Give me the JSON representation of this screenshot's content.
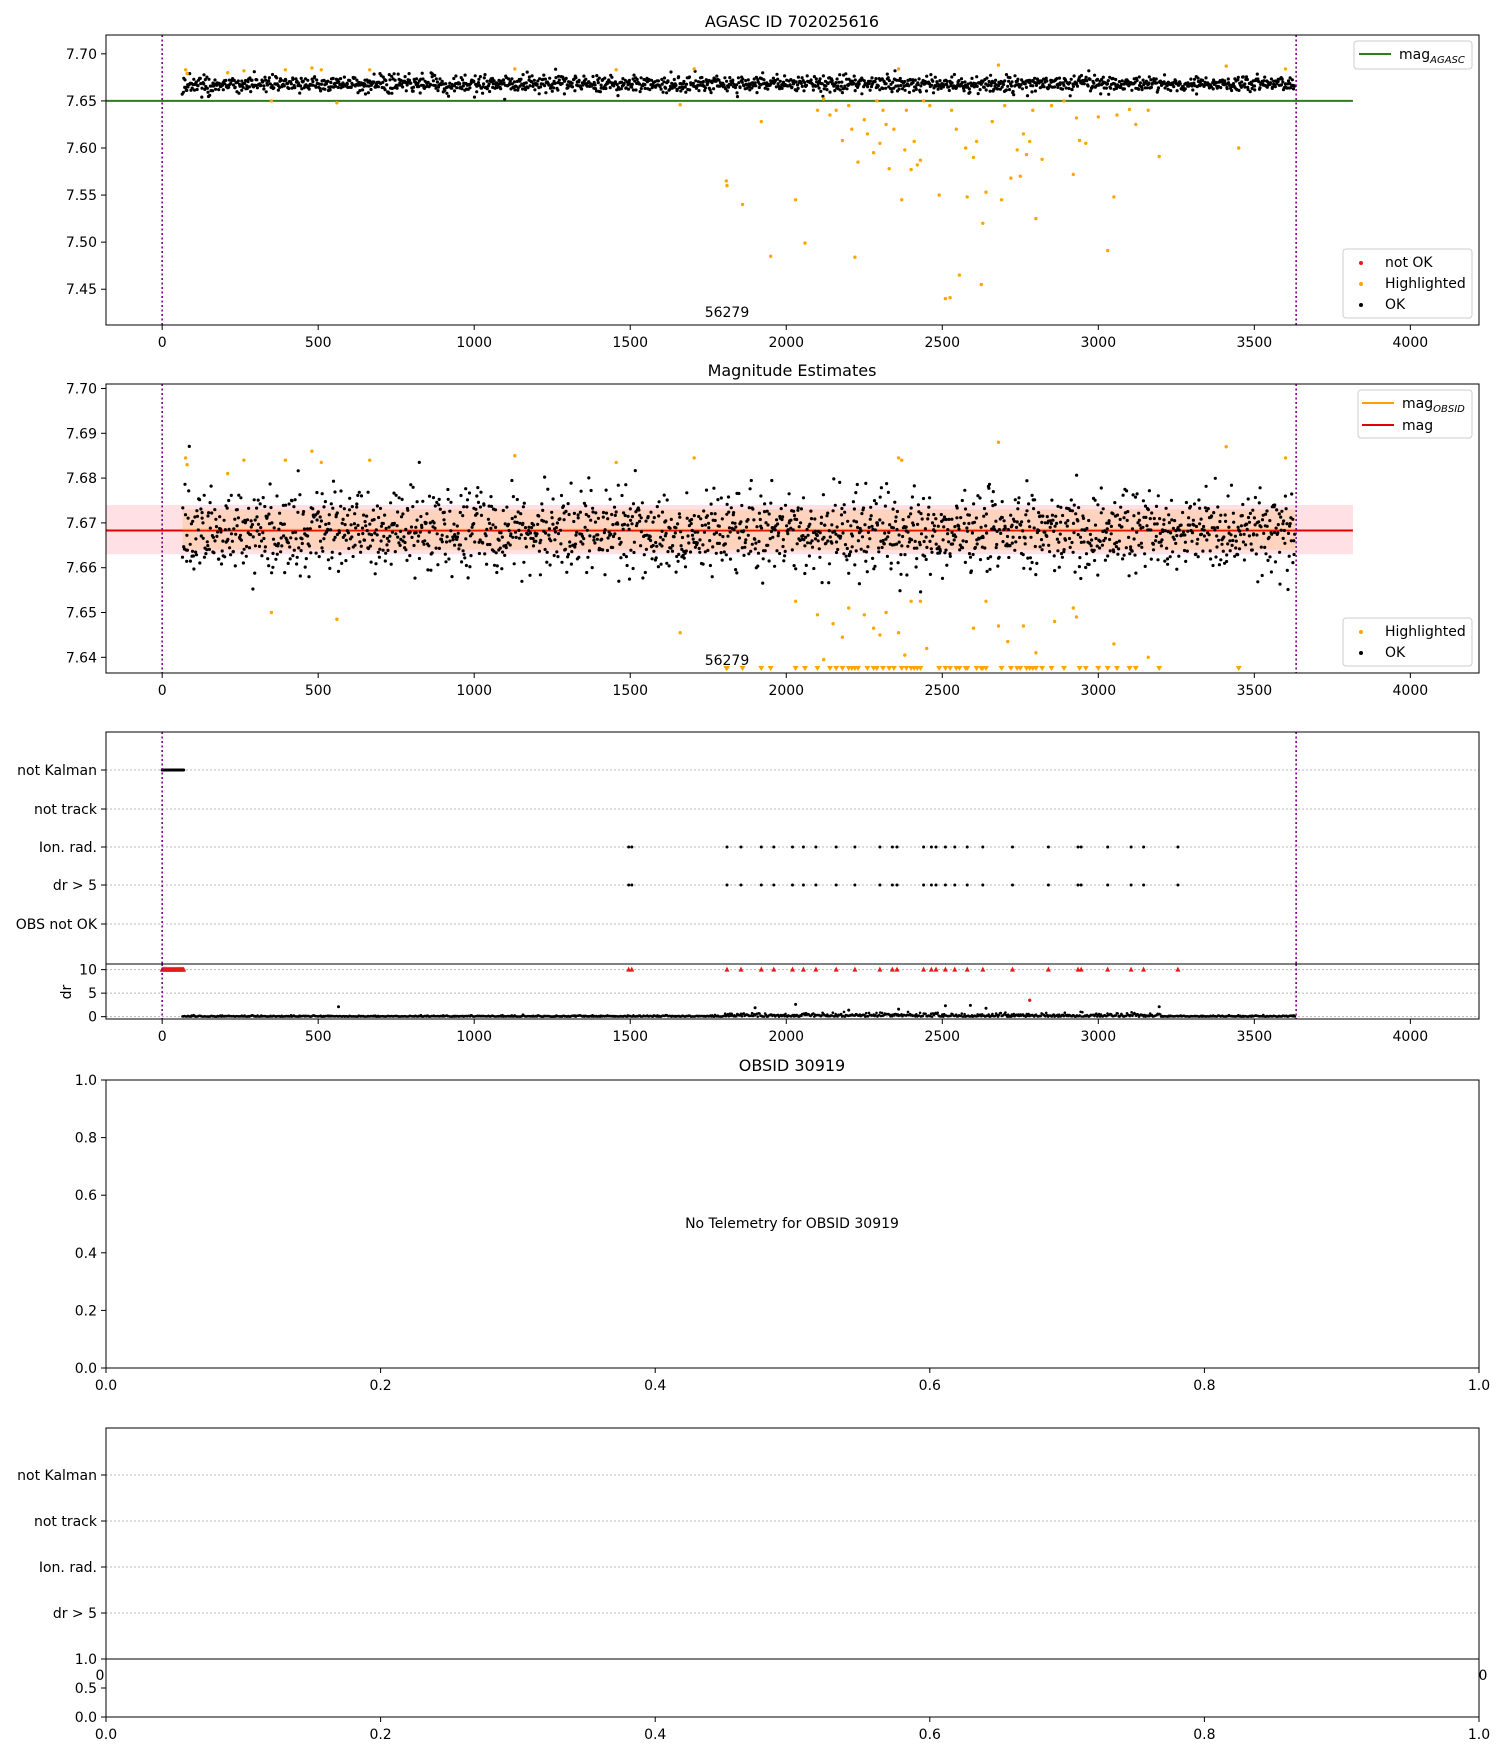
{
  "colors": {
    "ok": "#000000",
    "highlighted": "#ffa500",
    "not_ok": "#e41a1c",
    "agasc_line": "#2e7d1a",
    "mean_line": "#e00000",
    "obsid_line": "#ff9f00",
    "band_outer": "#ffd5dc",
    "band_inner": "#ffcfb4",
    "vline": "#7d008c",
    "grid": "#b8b8b8"
  },
  "chart_data": [
    {
      "id": "agasc",
      "type": "scatter",
      "title": "AGASC ID 702025616",
      "xlabel": "",
      "ylabel": "",
      "xlim": [
        -180,
        4220
      ],
      "ylim": [
        7.412,
        7.72
      ],
      "xticks": [
        0,
        500,
        1000,
        1500,
        2000,
        2500,
        3000,
        3500,
        4000
      ],
      "yticks": [
        7.45,
        7.5,
        7.55,
        7.6,
        7.65,
        7.7
      ],
      "ytick_labels": [
        "7.45",
        "7.50",
        "7.55",
        "7.60",
        "7.65",
        "7.70"
      ],
      "obs_boundaries": [
        0,
        3634
      ],
      "obs_label": "56279",
      "obs_label_x": 1810,
      "hlines": [
        {
          "name": "mag_AGASC",
          "y": 7.65,
          "x0": -180,
          "x1": 3816
        }
      ],
      "ok_band": {
        "center": 7.668,
        "spread": 0.0045,
        "x0": 65,
        "x1": 3630,
        "n": 1700
      },
      "highlighted_points": [
        [
          75,
          7.683
        ],
        [
          80,
          7.679
        ],
        [
          210,
          7.68
        ],
        [
          262,
          7.682
        ],
        [
          350,
          7.65
        ],
        [
          395,
          7.683
        ],
        [
          480,
          7.685
        ],
        [
          510,
          7.683
        ],
        [
          560,
          7.648
        ],
        [
          665,
          7.683
        ],
        [
          1130,
          7.684
        ],
        [
          1455,
          7.683
        ],
        [
          1660,
          7.646
        ],
        [
          1705,
          7.684
        ],
        [
          1808,
          7.565
        ],
        [
          1810,
          7.56
        ],
        [
          1860,
          7.54
        ],
        [
          1920,
          7.628
        ],
        [
          1950,
          7.485
        ],
        [
          2030,
          7.545
        ],
        [
          2060,
          7.499
        ],
        [
          2100,
          7.64
        ],
        [
          2120,
          7.652
        ],
        [
          2140,
          7.635
        ],
        [
          2160,
          7.64
        ],
        [
          2180,
          7.608
        ],
        [
          2200,
          7.645
        ],
        [
          2210,
          7.62
        ],
        [
          2220,
          7.484
        ],
        [
          2230,
          7.585
        ],
        [
          2250,
          7.63
        ],
        [
          2260,
          7.615
        ],
        [
          2280,
          7.595
        ],
        [
          2290,
          7.65
        ],
        [
          2300,
          7.605
        ],
        [
          2310,
          7.64
        ],
        [
          2320,
          7.625
        ],
        [
          2330,
          7.578
        ],
        [
          2345,
          7.62
        ],
        [
          2360,
          7.684
        ],
        [
          2370,
          7.545
        ],
        [
          2380,
          7.598
        ],
        [
          2385,
          7.64
        ],
        [
          2400,
          7.577
        ],
        [
          2410,
          7.607
        ],
        [
          2420,
          7.582
        ],
        [
          2430,
          7.587
        ],
        [
          2440,
          7.65
        ],
        [
          2460,
          7.645
        ],
        [
          2490,
          7.55
        ],
        [
          2510,
          7.44
        ],
        [
          2525,
          7.441
        ],
        [
          2530,
          7.64
        ],
        [
          2545,
          7.62
        ],
        [
          2555,
          7.465
        ],
        [
          2575,
          7.6
        ],
        [
          2580,
          7.548
        ],
        [
          2600,
          7.59
        ],
        [
          2610,
          7.607
        ],
        [
          2625,
          7.455
        ],
        [
          2630,
          7.52
        ],
        [
          2640,
          7.553
        ],
        [
          2660,
          7.628
        ],
        [
          2680,
          7.688
        ],
        [
          2690,
          7.545
        ],
        [
          2700,
          7.645
        ],
        [
          2720,
          7.568
        ],
        [
          2740,
          7.598
        ],
        [
          2750,
          7.57
        ],
        [
          2760,
          7.615
        ],
        [
          2770,
          7.593
        ],
        [
          2780,
          7.607
        ],
        [
          2790,
          7.64
        ],
        [
          2800,
          7.525
        ],
        [
          2820,
          7.588
        ],
        [
          2850,
          7.645
        ],
        [
          2890,
          7.65
        ],
        [
          2920,
          7.572
        ],
        [
          2930,
          7.632
        ],
        [
          2940,
          7.608
        ],
        [
          2960,
          7.605
        ],
        [
          3000,
          7.633
        ],
        [
          3030,
          7.491
        ],
        [
          3050,
          7.548
        ],
        [
          3060,
          7.635
        ],
        [
          3100,
          7.641
        ],
        [
          3120,
          7.625
        ],
        [
          3160,
          7.64
        ],
        [
          3195,
          7.591
        ],
        [
          3410,
          7.687
        ],
        [
          3450,
          7.6
        ],
        [
          3600,
          7.684
        ]
      ],
      "legend_upper": [
        {
          "label": "mag",
          "sub": "AGASC",
          "marker": "line",
          "color": "#2e7d1a"
        }
      ],
      "legend_lower": [
        {
          "label": "not OK",
          "marker": "dot",
          "color": "#e41a1c"
        },
        {
          "label": "Highlighted",
          "marker": "dot",
          "color": "#ffa500"
        },
        {
          "label": "OK",
          "marker": "dot",
          "color": "#000000"
        }
      ]
    },
    {
      "id": "mag_est",
      "type": "scatter",
      "title": "Magnitude Estimates",
      "xlabel": "",
      "ylabel": "",
      "xlim": [
        -180,
        4220
      ],
      "ylim": [
        7.6365,
        7.701
      ],
      "xticks": [
        0,
        500,
        1000,
        1500,
        2000,
        2500,
        3000,
        3500,
        4000
      ],
      "yticks": [
        7.64,
        7.65,
        7.66,
        7.67,
        7.68,
        7.69,
        7.7
      ],
      "ytick_labels": [
        "7.64",
        "7.65",
        "7.66",
        "7.67",
        "7.68",
        "7.69",
        "7.70"
      ],
      "obs_boundaries": [
        0,
        3634
      ],
      "obs_label": "56279",
      "obs_label_x": 1810,
      "mean_mag": 7.6683,
      "band_outer": [
        7.663,
        7.674
      ],
      "band_inner": [
        7.664,
        7.673
      ],
      "band_x": [
        -180,
        3816
      ],
      "band_inner_x": [
        65,
        3630
      ],
      "ok_band": {
        "center": 7.668,
        "spread": 0.0045,
        "x0": 65,
        "x1": 3630,
        "n": 1900
      },
      "highlighted_points": [
        [
          75,
          7.6845
        ],
        [
          80,
          7.683
        ],
        [
          210,
          7.681
        ],
        [
          262,
          7.684
        ],
        [
          350,
          7.65
        ],
        [
          395,
          7.684
        ],
        [
          480,
          7.686
        ],
        [
          510,
          7.6835
        ],
        [
          560,
          7.6485
        ],
        [
          665,
          7.684
        ],
        [
          1130,
          7.685
        ],
        [
          1455,
          7.6835
        ],
        [
          1660,
          7.6455
        ],
        [
          1705,
          7.6845
        ],
        [
          2360,
          7.6845
        ],
        [
          2370,
          7.684
        ],
        [
          2680,
          7.688
        ],
        [
          2030,
          7.6525
        ],
        [
          2100,
          7.6495
        ],
        [
          2120,
          7.6395
        ],
        [
          2150,
          7.6475
        ],
        [
          2180,
          7.6445
        ],
        [
          2200,
          7.651
        ],
        [
          2250,
          7.6495
        ],
        [
          2280,
          7.6465
        ],
        [
          2300,
          7.645
        ],
        [
          2320,
          7.65
        ],
        [
          2360,
          7.6455
        ],
        [
          2380,
          7.6405
        ],
        [
          2400,
          7.6525
        ],
        [
          2430,
          7.6525
        ],
        [
          2450,
          7.642
        ],
        [
          2600,
          7.6465
        ],
        [
          2640,
          7.6525
        ],
        [
          2680,
          7.647
        ],
        [
          2710,
          7.6435
        ],
        [
          2760,
          7.647
        ],
        [
          2800,
          7.641
        ],
        [
          2860,
          7.648
        ],
        [
          2920,
          7.651
        ],
        [
          2930,
          7.649
        ],
        [
          3050,
          7.643
        ],
        [
          3160,
          7.64
        ],
        [
          3410,
          7.687
        ],
        [
          3600,
          7.6845
        ]
      ],
      "floor_markers_x": [
        1808,
        1810,
        1860,
        1920,
        1950,
        2030,
        2060,
        2100,
        2140,
        2160,
        2180,
        2200,
        2210,
        2220,
        2230,
        2260,
        2280,
        2290,
        2310,
        2330,
        2345,
        2370,
        2385,
        2400,
        2410,
        2420,
        2430,
        2490,
        2510,
        2525,
        2545,
        2555,
        2575,
        2580,
        2610,
        2625,
        2630,
        2640,
        2690,
        2720,
        2740,
        2750,
        2770,
        2780,
        2790,
        2800,
        2820,
        2850,
        2890,
        2940,
        2960,
        3000,
        3030,
        3060,
        3100,
        3120,
        3195,
        3450
      ],
      "legend_upper": [
        {
          "label": "mag",
          "sub": "OBSID",
          "marker": "line",
          "color": "#ff9f00"
        },
        {
          "label": "mag",
          "sub": "",
          "marker": "line",
          "color": "#e00000"
        }
      ],
      "legend_lower": [
        {
          "label": "Highlighted",
          "marker": "dot",
          "color": "#ffa500"
        },
        {
          "label": "OK",
          "marker": "dot",
          "color": "#000000"
        }
      ]
    },
    {
      "id": "flags",
      "type": "scatter",
      "title": "",
      "xlabel": "",
      "ylabel": "",
      "xlim": [
        -180,
        4220
      ],
      "categories": [
        "not Kalman",
        "not track",
        "Ion. rad.",
        "dr > 5",
        "OBS not OK"
      ],
      "obs_boundaries": [
        0,
        3634
      ],
      "not_kalman_x": [
        0,
        70
      ],
      "flag_points_x": [
        1495,
        1505,
        1810,
        1855,
        1920,
        1960,
        2020,
        2055,
        2095,
        2160,
        2220,
        2300,
        2340,
        2355,
        2440,
        2465,
        2480,
        2510,
        2540,
        2580,
        2630,
        2725,
        2840,
        2935,
        2945,
        3030,
        3105,
        3145,
        3255
      ]
    },
    {
      "id": "dr",
      "type": "scatter",
      "title": "",
      "xlabel": "",
      "ylabel": "dr",
      "xlim": [
        -180,
        4220
      ],
      "ylim": [
        -0.5,
        11.2
      ],
      "yticks": [
        0,
        5,
        10
      ],
      "ytick_labels": [
        "0",
        "5",
        "10"
      ],
      "xticks": [
        0,
        500,
        1000,
        1500,
        2000,
        2500,
        3000,
        3500,
        4000
      ],
      "obs_boundaries": [
        0,
        3634
      ],
      "limit_markers_x": [
        0,
        70
      ],
      "outliers": [
        [
          565,
          2.1
        ],
        [
          2030,
          2.6
        ],
        [
          1900,
          1.9
        ],
        [
          2510,
          2.3
        ],
        [
          2590,
          2.4
        ],
        [
          2640,
          1.8
        ],
        [
          2780,
          3.5
        ],
        [
          3195,
          2.1
        ],
        [
          2360,
          1.6
        ],
        [
          2200,
          1.4
        ]
      ],
      "red_points": [
        [
          2780,
          3.5
        ]
      ]
    },
    {
      "id": "obsid",
      "type": "scatter",
      "title": "OBSID 30919",
      "xlabel": "",
      "ylabel": "",
      "xlim": [
        0,
        1
      ],
      "ylim": [
        0,
        1
      ],
      "xticks": [
        0,
        0.2,
        0.4,
        0.6,
        0.8,
        1.0
      ],
      "xtick_labels": [
        "0.0",
        "0.2",
        "0.4",
        "0.6",
        "0.8",
        "1.0"
      ],
      "yticks": [
        0,
        0.2,
        0.4,
        0.6,
        0.8,
        1.0
      ],
      "ytick_labels": [
        "0.0",
        "0.2",
        "0.4",
        "0.6",
        "0.8",
        "1.0"
      ],
      "message": "No Telemetry for OBSID 30919"
    },
    {
      "id": "flags2",
      "type": "scatter",
      "title": "",
      "xlabel": "",
      "ylabel": "",
      "categories": [
        "not Kalman",
        "not track",
        "Ion. rad.",
        "dr > 5"
      ],
      "edge_x_labels": [
        "0",
        "0"
      ]
    },
    {
      "id": "small",
      "type": "scatter",
      "title": "",
      "xlabel": "",
      "ylabel": "",
      "xlim": [
        0,
        1
      ],
      "ylim": [
        0,
        1
      ],
      "xticks": [
        0,
        0.2,
        0.4,
        0.6,
        0.8,
        1.0
      ],
      "xtick_labels": [
        "0.0",
        "0.2",
        "0.4",
        "0.6",
        "0.8",
        "1.0"
      ],
      "yticks": [
        0,
        0.5,
        1.0
      ],
      "ytick_labels": [
        "0.0",
        "0.5",
        "1.0"
      ]
    }
  ]
}
